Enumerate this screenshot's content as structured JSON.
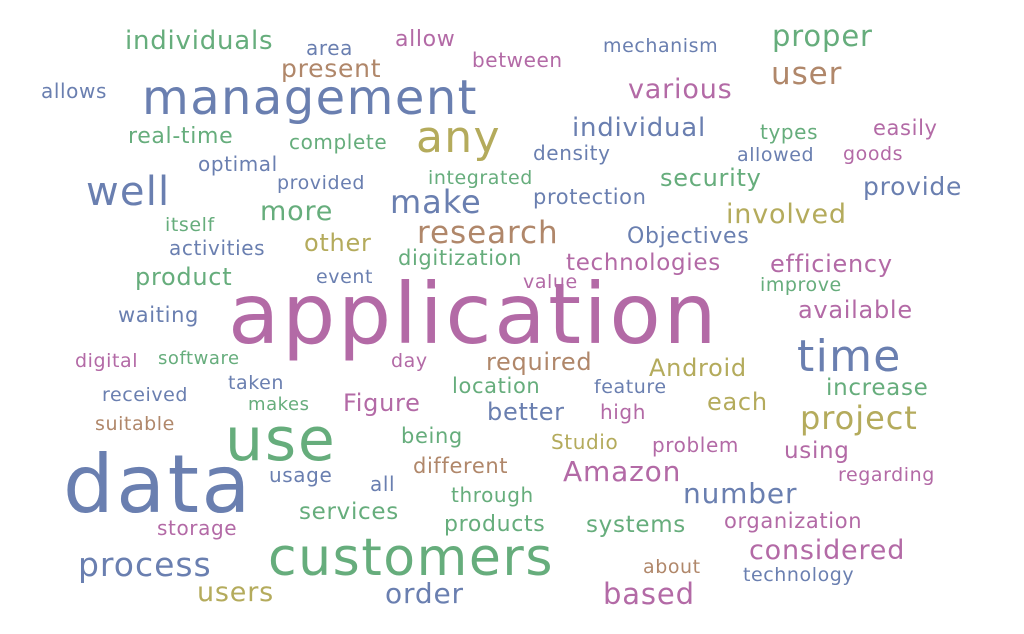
{
  "palette": {
    "blue": "#6a7fb0",
    "green": "#66ad7c",
    "purple": "#b36aa6",
    "olive": "#b4ab5c",
    "brown": "#b0876a"
  },
  "words": [
    {
      "text": "application",
      "color": "purple"
    },
    {
      "text": "data",
      "color": "blue"
    },
    {
      "text": "customers",
      "color": "green"
    },
    {
      "text": "use",
      "color": "green"
    },
    {
      "text": "management",
      "color": "blue"
    },
    {
      "text": "time",
      "color": "blue"
    },
    {
      "text": "any",
      "color": "olive"
    },
    {
      "text": "well",
      "color": "blue"
    },
    {
      "text": "process",
      "color": "blue"
    },
    {
      "text": "research",
      "color": "brown"
    },
    {
      "text": "make",
      "color": "blue"
    },
    {
      "text": "user",
      "color": "brown"
    },
    {
      "text": "project",
      "color": "olive"
    },
    {
      "text": "Amazon",
      "color": "purple"
    },
    {
      "text": "number",
      "color": "blue"
    },
    {
      "text": "considered",
      "color": "purple"
    },
    {
      "text": "proper",
      "color": "green"
    },
    {
      "text": "individuals",
      "color": "green"
    },
    {
      "text": "various",
      "color": "purple"
    },
    {
      "text": "individual",
      "color": "blue"
    },
    {
      "text": "involved",
      "color": "olive"
    },
    {
      "text": "more",
      "color": "green"
    },
    {
      "text": "provide",
      "color": "blue"
    },
    {
      "text": "based",
      "color": "purple"
    },
    {
      "text": "order",
      "color": "blue"
    },
    {
      "text": "users",
      "color": "olive"
    },
    {
      "text": "present",
      "color": "brown"
    },
    {
      "text": "other",
      "color": "olive"
    },
    {
      "text": "security",
      "color": "green"
    },
    {
      "text": "efficiency",
      "color": "purple"
    },
    {
      "text": "technologies",
      "color": "purple"
    },
    {
      "text": "Android",
      "color": "olive"
    },
    {
      "text": "each",
      "color": "olive"
    },
    {
      "text": "better",
      "color": "blue"
    },
    {
      "text": "increase",
      "color": "green"
    },
    {
      "text": "available",
      "color": "purple"
    },
    {
      "text": "required",
      "color": "brown"
    },
    {
      "text": "Figure",
      "color": "purple"
    },
    {
      "text": "product",
      "color": "green"
    },
    {
      "text": "real-time",
      "color": "green"
    },
    {
      "text": "Objectives",
      "color": "blue"
    },
    {
      "text": "services",
      "color": "green"
    },
    {
      "text": "products",
      "color": "green"
    },
    {
      "text": "systems",
      "color": "green"
    },
    {
      "text": "organization",
      "color": "purple"
    },
    {
      "text": "using",
      "color": "purple"
    },
    {
      "text": "different",
      "color": "brown"
    },
    {
      "text": "location",
      "color": "green"
    },
    {
      "text": "digitization",
      "color": "green"
    },
    {
      "text": "protection",
      "color": "blue"
    },
    {
      "text": "integrated",
      "color": "green"
    },
    {
      "text": "mechanism",
      "color": "blue"
    },
    {
      "text": "allow",
      "color": "purple"
    },
    {
      "text": "between",
      "color": "purple"
    },
    {
      "text": "area",
      "color": "blue"
    },
    {
      "text": "allows",
      "color": "blue"
    },
    {
      "text": "easily",
      "color": "purple"
    },
    {
      "text": "types",
      "color": "green"
    },
    {
      "text": "goods",
      "color": "purple"
    },
    {
      "text": "allowed",
      "color": "blue"
    },
    {
      "text": "density",
      "color": "blue"
    },
    {
      "text": "complete",
      "color": "green"
    },
    {
      "text": "optimal",
      "color": "blue"
    },
    {
      "text": "provided",
      "color": "blue"
    },
    {
      "text": "itself",
      "color": "green"
    },
    {
      "text": "activities",
      "color": "blue"
    },
    {
      "text": "event",
      "color": "blue"
    },
    {
      "text": "value",
      "color": "purple"
    },
    {
      "text": "improve",
      "color": "green"
    },
    {
      "text": "waiting",
      "color": "blue"
    },
    {
      "text": "digital",
      "color": "purple"
    },
    {
      "text": "software",
      "color": "green"
    },
    {
      "text": "day",
      "color": "purple"
    },
    {
      "text": "received",
      "color": "blue"
    },
    {
      "text": "taken",
      "color": "blue"
    },
    {
      "text": "makes",
      "color": "green"
    },
    {
      "text": "suitable",
      "color": "brown"
    },
    {
      "text": "feature",
      "color": "blue"
    },
    {
      "text": "high",
      "color": "purple"
    },
    {
      "text": "being",
      "color": "green"
    },
    {
      "text": "Studio",
      "color": "olive"
    },
    {
      "text": "problem",
      "color": "purple"
    },
    {
      "text": "usage",
      "color": "blue"
    },
    {
      "text": "all",
      "color": "blue"
    },
    {
      "text": "through",
      "color": "green"
    },
    {
      "text": "regarding",
      "color": "purple"
    },
    {
      "text": "storage",
      "color": "purple"
    },
    {
      "text": "about",
      "color": "brown"
    },
    {
      "text": "technology",
      "color": "blue"
    }
  ]
}
